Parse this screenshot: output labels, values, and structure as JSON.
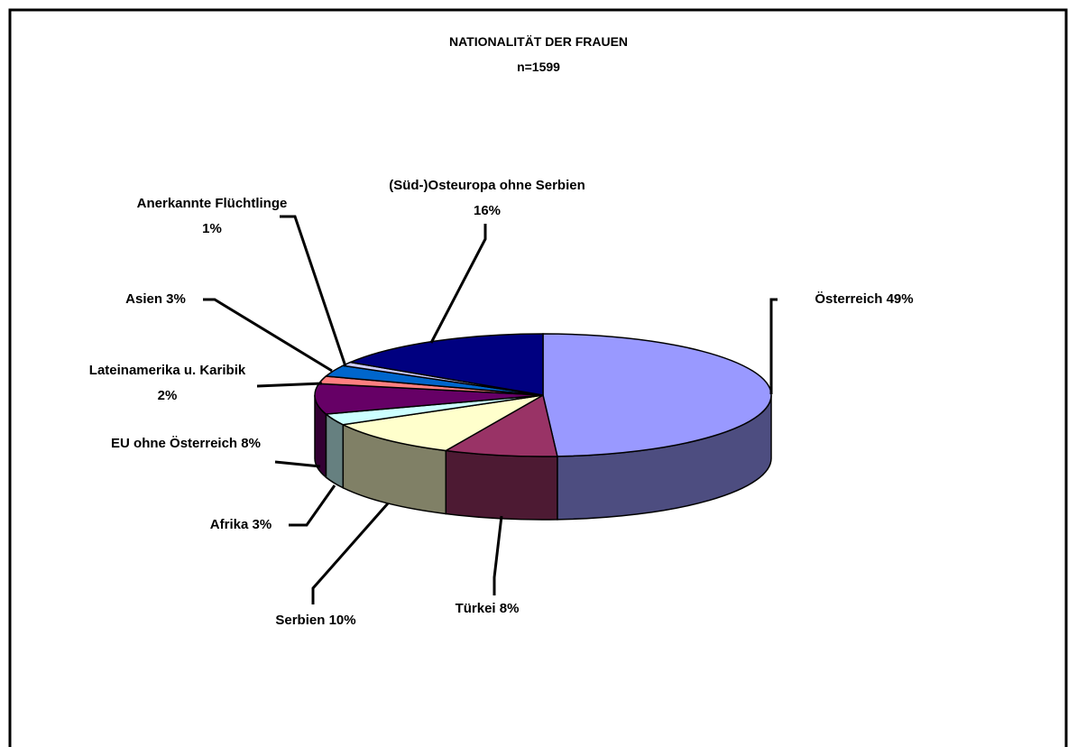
{
  "chart_data": {
    "type": "pie",
    "title": "NATIONALITÄT DER FRAUEN",
    "subtitle": "n=1599",
    "categories": [
      "Österreich",
      "Türkei",
      "Serbien",
      "Afrika",
      "EU ohne Österreich",
      "Lateinamerika u. Karibik",
      "Asien",
      "Anerkannte Flüchtlinge",
      "(Süd-)Osteuropa ohne Serbien"
    ],
    "values": [
      49,
      8,
      10,
      3,
      8,
      2,
      3,
      1,
      16
    ],
    "value_labels": [
      "49%",
      "8%",
      "10%",
      "3%",
      "8%",
      "2%",
      "3%",
      "1%",
      "16%"
    ],
    "colors": [
      "#9999ff",
      "#993366",
      "#ffffcc",
      "#ccffff",
      "#660066",
      "#ff8080",
      "#0066cc",
      "#ccccff",
      "#000080"
    ]
  }
}
